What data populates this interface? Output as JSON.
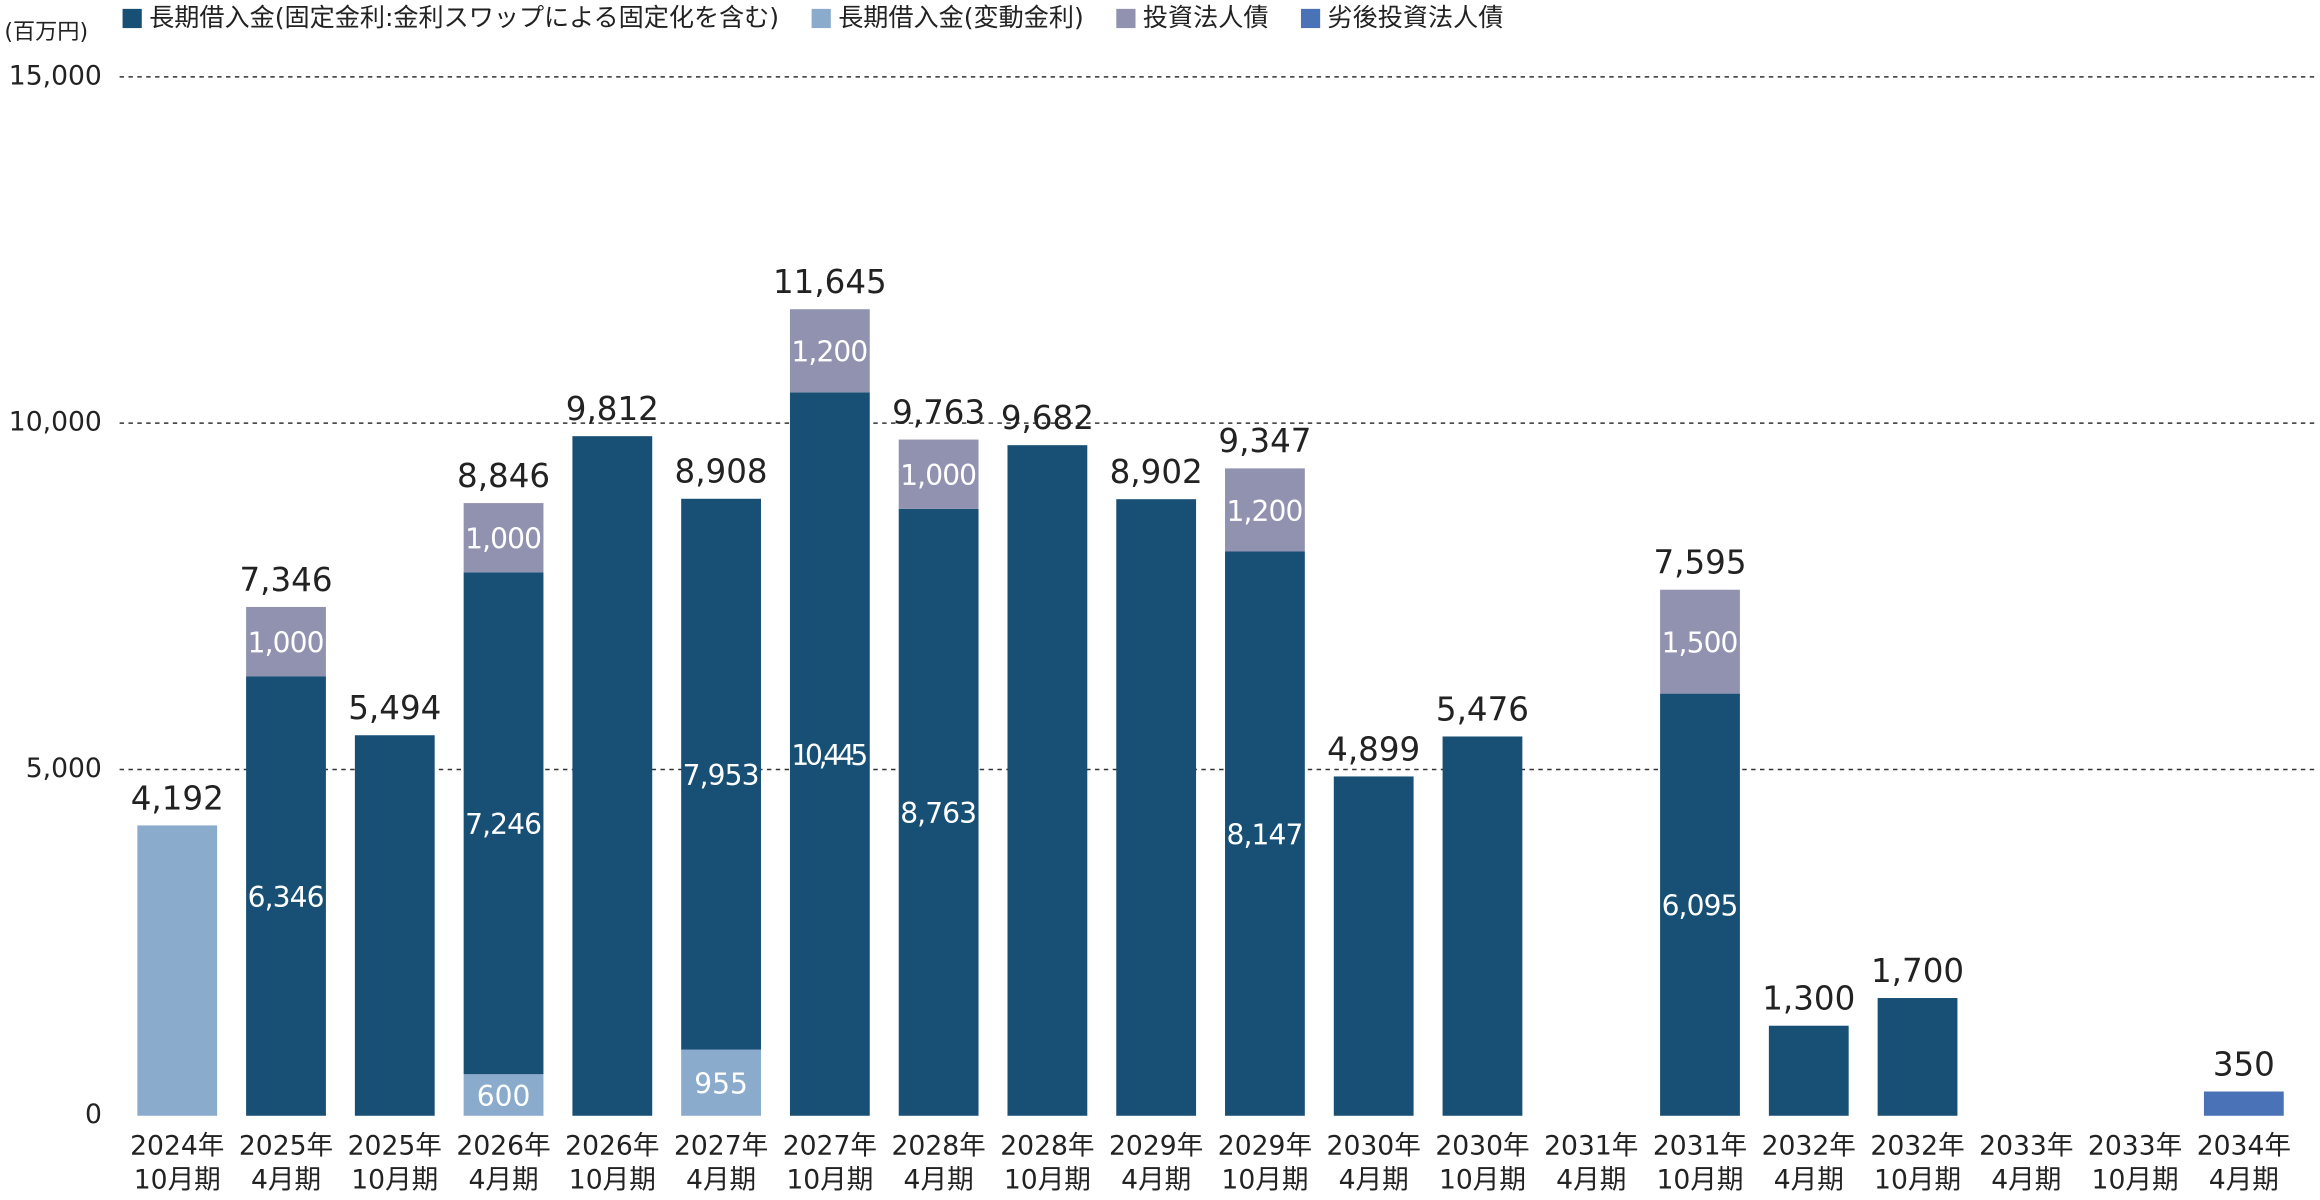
{
  "chart_data": {
    "type": "stacked-bar",
    "y_label": "(百万円)",
    "categories": [
      [
        "2024年",
        "10月期"
      ],
      [
        "2025年",
        "4月期"
      ],
      [
        "2025年",
        "10月期"
      ],
      [
        "2026年",
        "4月期"
      ],
      [
        "2026年",
        "10月期"
      ],
      [
        "2027年",
        "4月期"
      ],
      [
        "2027年",
        "10月期"
      ],
      [
        "2028年",
        "4月期"
      ],
      [
        "2028年",
        "10月期"
      ],
      [
        "2029年",
        "4月期"
      ],
      [
        "2029年",
        "10月期"
      ],
      [
        "2030年",
        "4月期"
      ],
      [
        "2030年",
        "10月期"
      ],
      [
        "2031年",
        "4月期"
      ],
      [
        "2031年",
        "10月期"
      ],
      [
        "2032年",
        "4月期"
      ],
      [
        "2032年",
        "10月期"
      ],
      [
        "2033年",
        "4月期"
      ],
      [
        "2033年",
        "10月期"
      ],
      [
        "2034年",
        "4月期"
      ]
    ],
    "series": [
      {
        "name": "長期借入金(固定金利:金利スワップによる固定化を含む)",
        "color": "#184f75",
        "values": [
          null,
          6346,
          5494,
          7246,
          9812,
          7953,
          10445,
          8763,
          9682,
          8902,
          8147,
          4899,
          5476,
          null,
          6095,
          1300,
          1700,
          null,
          null,
          null
        ],
        "value_labels": [
          null,
          "6,346",
          null,
          "7,246",
          null,
          "7,953",
          "10,445",
          "8,763",
          null,
          null,
          "8,147",
          null,
          null,
          null,
          "6,095",
          null,
          null,
          null,
          null,
          null
        ]
      },
      {
        "name": "長期借入金(変動金利)",
        "color": "#8aabcc",
        "values": [
          4192,
          null,
          null,
          600,
          null,
          955,
          null,
          null,
          null,
          null,
          null,
          null,
          null,
          null,
          null,
          null,
          null,
          null,
          null,
          null
        ],
        "value_labels": [
          null,
          null,
          null,
          "600",
          null,
          "955",
          null,
          null,
          null,
          null,
          null,
          null,
          null,
          null,
          null,
          null,
          null,
          null,
          null,
          null
        ]
      },
      {
        "name": "投資法人債",
        "color": "#9192b0",
        "values": [
          null,
          1000,
          null,
          1000,
          null,
          null,
          1200,
          1000,
          null,
          null,
          1200,
          null,
          null,
          null,
          1500,
          null,
          null,
          null,
          null,
          null
        ],
        "value_labels": [
          null,
          "1,000",
          null,
          "1,000",
          null,
          null,
          "1,200",
          "1,000",
          null,
          null,
          "1,200",
          null,
          null,
          null,
          "1,500",
          null,
          null,
          null,
          null,
          null
        ]
      },
      {
        "name": "劣後投資法人債",
        "color": "#4a72b7",
        "values": [
          null,
          null,
          null,
          null,
          null,
          null,
          null,
          null,
          null,
          null,
          null,
          null,
          null,
          null,
          null,
          null,
          null,
          null,
          null,
          350
        ]
      }
    ],
    "totals": [
      4192,
      7346,
      5494,
      8846,
      9812,
      8908,
      11645,
      9763,
      9682,
      8902,
      9347,
      4899,
      5476,
      null,
      7595,
      1300,
      1700,
      null,
      null,
      350
    ],
    "total_labels": [
      "4,192",
      "7,346",
      "5,494",
      "8,846",
      "9,812",
      "8,908",
      "11,645",
      "9,763",
      "9,682",
      "8,902",
      "9,347",
      "4,899",
      "5,476",
      null,
      "7,595",
      "1,300",
      "1,700",
      null,
      null,
      "350"
    ],
    "ylim": [
      0,
      15000
    ],
    "yticks": [
      0,
      {
        "value": 5000,
        "label": "5,000"
      },
      {
        "value": 10000,
        "label": "10,000"
      },
      {
        "value": 15000,
        "label": "15,000"
      }
    ],
    "grid": true
  }
}
